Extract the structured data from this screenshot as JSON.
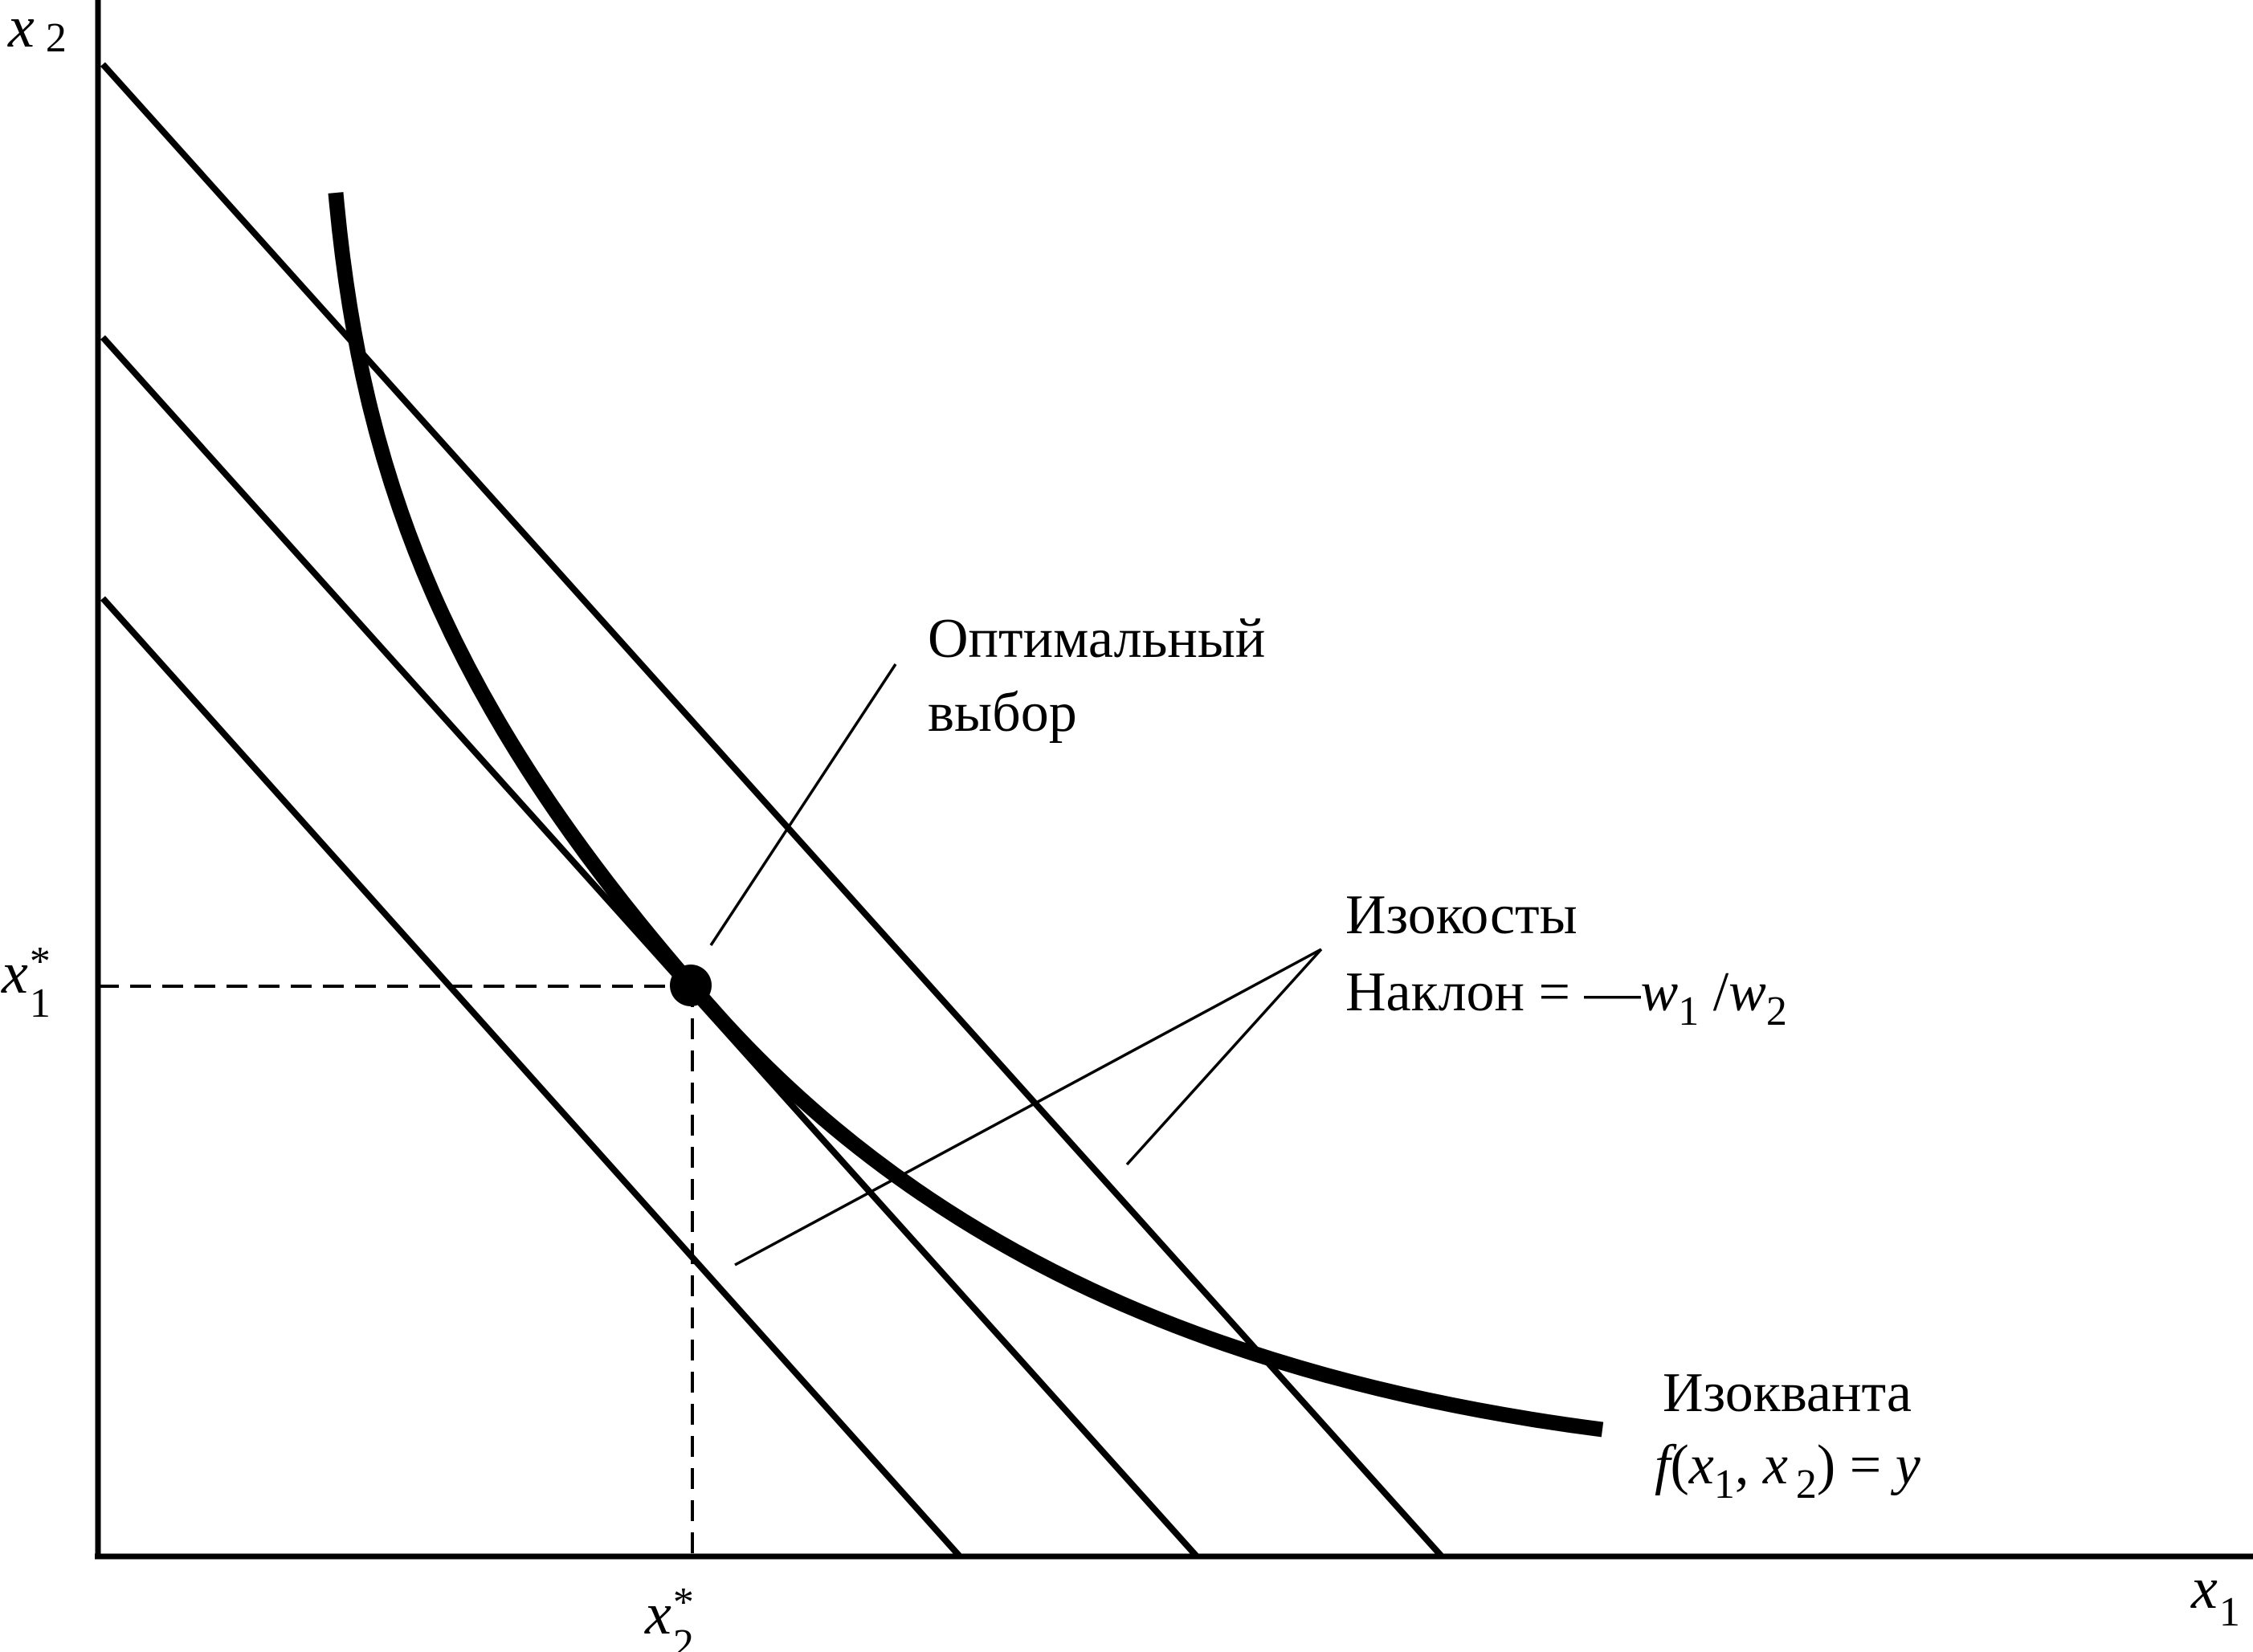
{
  "axes": {
    "y_symbol": "x",
    "y_subscript": "2",
    "x_symbol": "x",
    "x_subscript": "1"
  },
  "ticks": {
    "y_optimal": {
      "symbol": "x",
      "star": "*",
      "subscript": "1"
    },
    "x_optimal": {
      "symbol": "x",
      "star": "*",
      "subscript": "2"
    }
  },
  "labels": {
    "optimal_line1": "Оптимальный",
    "optimal_line2": "выбор",
    "isocost_line1": "Изокосты",
    "isocost_slope_prefix": "Наклон = —",
    "isocost_w": "w",
    "isocost_sub1": "1",
    "isocost_slash": " /",
    "isocost_w2": "w",
    "isocost_sub2": "2",
    "isoquant_line1": "Изокванта",
    "isoquant_f": "f",
    "isoquant_open": "(",
    "isoquant_x1": "x",
    "isoquant_s1": "1",
    "isoquant_comma": ", ",
    "isoquant_x2": "x",
    "isoquant_s2": "2",
    "isoquant_close": ") = ",
    "isoquant_y": "y"
  },
  "colors": {
    "ink": "#000000",
    "background": "#ffffff"
  }
}
